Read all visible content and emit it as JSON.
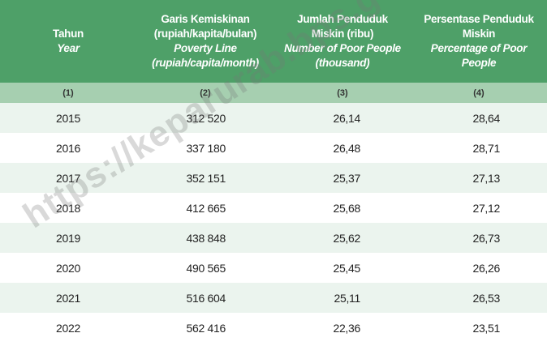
{
  "header": {
    "col1": {
      "id": "Tahun",
      "en": "Year"
    },
    "col2": {
      "id": "Garis Kemiskinan",
      "id_unit": "(rupiah/kapita/bulan)",
      "en": "Poverty Line",
      "en_unit": "(rupiah/capita/month)"
    },
    "col3": {
      "id": "Jumlah Penduduk",
      "id_unit": "Miskin (ribu)",
      "en": "Number of Poor People",
      "en_unit": "(thousand)"
    },
    "col4": {
      "id": "Persentase Penduduk",
      "id_unit": "Miskin",
      "en": "Percentage of Poor",
      "en_unit": "People"
    }
  },
  "column_numbers": [
    "(1)",
    "(2)",
    "(3)",
    "(4)"
  ],
  "rows": [
    {
      "year": "2015",
      "poverty_line": "312 520",
      "poor_people": "26,14",
      "percentage": "28,64"
    },
    {
      "year": "2016",
      "poverty_line": "337 180",
      "poor_people": "26,48",
      "percentage": "28,71"
    },
    {
      "year": "2017",
      "poverty_line": "352 151",
      "poor_people": "25,37",
      "percentage": "27,13"
    },
    {
      "year": "2018",
      "poverty_line": "412 665",
      "poor_people": "25,68",
      "percentage": "27,12"
    },
    {
      "year": "2019",
      "poverty_line": "438 848",
      "poor_people": "25,62",
      "percentage": "26,73"
    },
    {
      "year": "2020",
      "poverty_line": "490 565",
      "poor_people": "25,45",
      "percentage": "26,26"
    },
    {
      "year": "2021",
      "poverty_line": "516 604",
      "poor_people": "25,11",
      "percentage": "26,53"
    },
    {
      "year": "2022",
      "poverty_line": "562 416",
      "poor_people": "22,36",
      "percentage": "23,51"
    }
  ],
  "watermark": "https://keparurab.bps.go.id",
  "colors": {
    "header": "#4ea068",
    "subheader": "#a6cfb0",
    "stripe": "#ebf4ee"
  }
}
